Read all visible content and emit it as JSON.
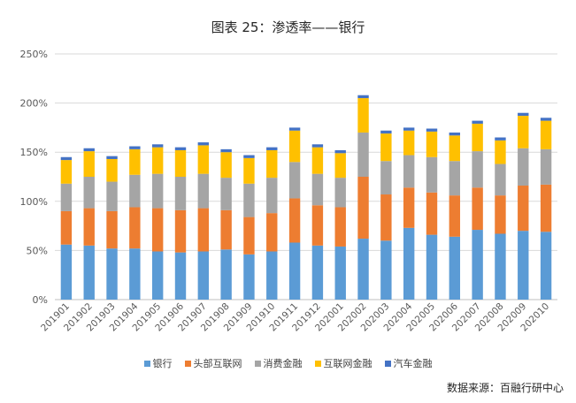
{
  "chart_data": {
    "type": "bar",
    "stacked": true,
    "title": "图表 25：渗透率——银行",
    "xlabel": "",
    "ylabel": "",
    "ylim": [
      0,
      250
    ],
    "y_ticks": [
      0,
      50,
      100,
      150,
      200,
      250
    ],
    "y_tick_labels": [
      "0%",
      "50%",
      "100%",
      "150%",
      "200%",
      "250%"
    ],
    "grid": true,
    "legend_position": "bottom",
    "categories": [
      "201901",
      "201902",
      "201903",
      "201904",
      "201905",
      "201906",
      "201907",
      "201908",
      "201909",
      "201910",
      "201911",
      "201912",
      "202001",
      "202002",
      "202003",
      "202004",
      "202005",
      "202006",
      "202007",
      "202008",
      "202009",
      "202010"
    ],
    "series": [
      {
        "name": "银行",
        "color": "#5B9BD5",
        "values": [
          56,
          55,
          52,
          52,
          49,
          48,
          49,
          51,
          46,
          49,
          58,
          55,
          54,
          62,
          60,
          73,
          66,
          64,
          71,
          67,
          70,
          69
        ]
      },
      {
        "name": "头部互联网",
        "color": "#ED7D31",
        "values": [
          34,
          38,
          38,
          42,
          44,
          43,
          44,
          40,
          38,
          39,
          45,
          41,
          40,
          63,
          47,
          41,
          43,
          42,
          43,
          39,
          46,
          48
        ]
      },
      {
        "name": "消费金融",
        "color": "#A5A5A5",
        "values": [
          28,
          32,
          30,
          33,
          35,
          34,
          35,
          33,
          34,
          36,
          37,
          32,
          30,
          45,
          34,
          33,
          36,
          35,
          37,
          32,
          38,
          36
        ]
      },
      {
        "name": "互联网金融",
        "color": "#FFC000",
        "values": [
          24,
          26,
          23,
          26,
          27,
          27,
          29,
          26,
          26,
          28,
          32,
          27,
          25,
          35,
          28,
          25,
          26,
          26,
          28,
          24,
          33,
          29
        ]
      },
      {
        "name": "汽车金融",
        "color": "#4472C4",
        "values": [
          3,
          3,
          3,
          3,
          3,
          3,
          3,
          3,
          3,
          3,
          3,
          3,
          3,
          3,
          3,
          3,
          3,
          3,
          3,
          3,
          3,
          3
        ]
      }
    ],
    "source": "数据来源：百融行研中心"
  }
}
